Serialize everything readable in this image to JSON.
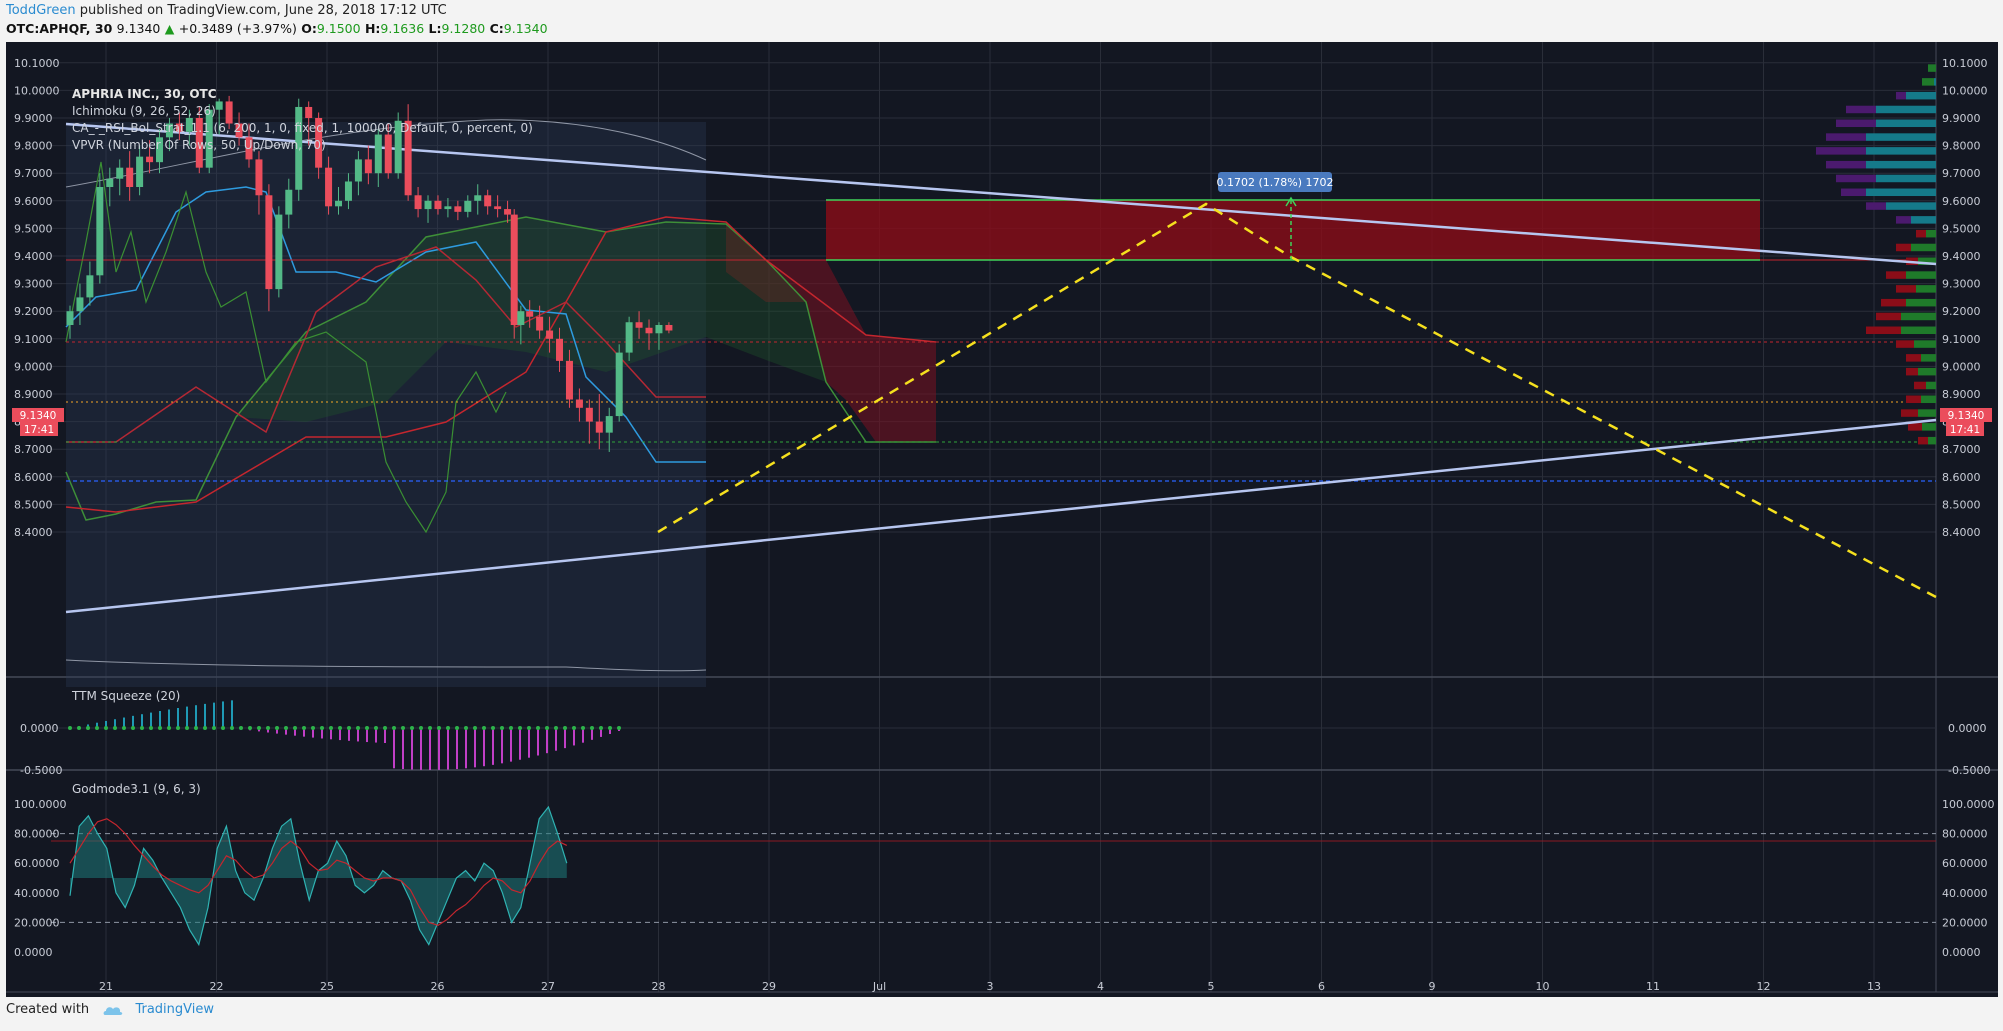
{
  "header": {
    "user": "ToddGreen",
    "published": "published on TradingView.com, June 28, 2018 17:12 UTC",
    "symbol": "OTC:APHQF, 30",
    "last": "9.1340",
    "change": "+0.3489 (+3.97%)",
    "open_label": "O:",
    "open": "9.1500",
    "high_label": "H:",
    "high": "9.1636",
    "low_label": "L:",
    "low": "9.1280",
    "close_label": "C:",
    "close": "9.1340"
  },
  "legend": {
    "title": "APHRIA INC., 30, OTC",
    "ind1": "Ichimoku (9, 26, 52, 26)",
    "ind2": "CA_-_RSI_Bol_Strat_1.1 (6, 200, 1, 0, fixed, 1, 100000, Default, 0, percent, 0)",
    "ind3": "VPVR (Number Of Rows, 50, Up/Down, 70)"
  },
  "price_badge": {
    "price": "9.1340",
    "timer": "17:41"
  },
  "measure_label": "0.1702 (1.78%) 1702",
  "pane2_title": "TTM Squeeze (20)",
  "pane3_title": "Godmode3.1 (9, 6, 3)",
  "footer": {
    "created": "Created with",
    "brand": "TradingView"
  },
  "colors": {
    "bg": "#131722",
    "up": "#53b987",
    "down": "#eb4d5c",
    "trend": "#b7c6f0",
    "dash": "#f5e01e",
    "zone": "#8b0d18"
  },
  "chart_data": {
    "type": "candlestick",
    "title": "APHRIA INC., 30, OTC",
    "x_ticks": [
      "21",
      "22",
      "25",
      "26",
      "27",
      "28",
      "29",
      "Jul",
      "3",
      "4",
      "5",
      "6",
      "9",
      "10",
      "11",
      "12",
      "13"
    ],
    "y_ticks": [
      "8.4000",
      "8.5000",
      "8.6000",
      "8.7000",
      "8.8000",
      "8.9000",
      "9.0000",
      "9.1000",
      "9.2000",
      "9.3000",
      "9.4000",
      "9.5000",
      "9.6000",
      "9.7000",
      "9.8000",
      "9.9000",
      "10.0000",
      "10.1000"
    ],
    "ylim": [
      8.4,
      10.15
    ],
    "candles": [
      [
        0.0,
        9.15,
        9.22,
        9.1,
        9.2
      ],
      [
        0.09,
        9.2,
        9.3,
        9.15,
        9.25
      ],
      [
        0.18,
        9.25,
        9.38,
        9.22,
        9.33
      ],
      [
        0.27,
        9.33,
        9.7,
        9.3,
        9.65
      ],
      [
        0.36,
        9.65,
        9.72,
        9.58,
        9.68
      ],
      [
        0.45,
        9.68,
        9.75,
        9.62,
        9.72
      ],
      [
        0.54,
        9.72,
        9.78,
        9.6,
        9.65
      ],
      [
        0.63,
        9.65,
        9.8,
        9.62,
        9.76
      ],
      [
        0.72,
        9.76,
        9.82,
        9.7,
        9.74
      ],
      [
        0.81,
        9.74,
        9.86,
        9.7,
        9.83
      ],
      [
        0.9,
        9.83,
        9.9,
        9.78,
        9.88
      ],
      [
        0.99,
        9.88,
        9.92,
        9.82,
        9.85
      ],
      [
        1.08,
        9.85,
        9.93,
        9.8,
        9.9
      ],
      [
        1.17,
        9.9,
        9.94,
        9.7,
        9.72
      ],
      [
        1.26,
        9.72,
        9.95,
        9.7,
        9.93
      ],
      [
        1.35,
        9.93,
        9.97,
        9.84,
        9.96
      ],
      [
        1.44,
        9.96,
        9.98,
        9.86,
        9.88
      ],
      [
        1.53,
        9.88,
        9.92,
        9.8,
        9.83
      ],
      [
        1.62,
        9.83,
        9.88,
        9.72,
        9.75
      ],
      [
        1.71,
        9.75,
        9.78,
        9.55,
        9.62
      ],
      [
        1.8,
        9.62,
        9.66,
        9.2,
        9.28
      ],
      [
        1.89,
        9.28,
        9.58,
        9.25,
        9.55
      ],
      [
        1.98,
        9.55,
        9.68,
        9.5,
        9.64
      ],
      [
        2.07,
        9.64,
        9.97,
        9.6,
        9.94
      ],
      [
        2.16,
        9.94,
        9.96,
        9.8,
        9.9
      ],
      [
        2.25,
        9.9,
        9.92,
        9.68,
        9.72
      ],
      [
        2.34,
        9.72,
        9.76,
        9.55,
        9.58
      ],
      [
        2.43,
        9.58,
        9.65,
        9.55,
        9.6
      ],
      [
        2.52,
        9.6,
        9.7,
        9.57,
        9.67
      ],
      [
        2.61,
        9.67,
        9.78,
        9.62,
        9.75
      ],
      [
        2.7,
        9.75,
        9.8,
        9.66,
        9.7
      ],
      [
        2.79,
        9.7,
        9.86,
        9.65,
        9.84
      ],
      [
        2.88,
        9.84,
        9.88,
        9.68,
        9.7
      ],
      [
        2.97,
        9.7,
        9.92,
        9.68,
        9.89
      ],
      [
        3.06,
        9.89,
        9.95,
        9.6,
        9.62
      ],
      [
        3.15,
        9.62,
        9.65,
        9.54,
        9.57
      ],
      [
        3.24,
        9.57,
        9.62,
        9.52,
        9.6
      ],
      [
        3.33,
        9.6,
        9.62,
        9.55,
        9.57
      ],
      [
        3.42,
        9.57,
        9.61,
        9.54,
        9.58
      ],
      [
        3.51,
        9.58,
        9.6,
        9.53,
        9.56
      ],
      [
        3.6,
        9.56,
        9.62,
        9.54,
        9.6
      ],
      [
        3.69,
        9.6,
        9.66,
        9.55,
        9.62
      ],
      [
        3.78,
        9.62,
        9.64,
        9.55,
        9.58
      ],
      [
        3.87,
        9.58,
        9.62,
        9.54,
        9.57
      ],
      [
        3.96,
        9.57,
        9.6,
        9.52,
        9.55
      ],
      [
        4.02,
        9.55,
        9.57,
        9.1,
        9.15
      ],
      [
        4.08,
        9.15,
        9.22,
        9.08,
        9.2
      ],
      [
        4.16,
        9.2,
        9.24,
        9.14,
        9.18
      ],
      [
        4.25,
        9.18,
        9.22,
        9.1,
        9.13
      ],
      [
        4.34,
        9.13,
        9.18,
        9.05,
        9.1
      ],
      [
        4.43,
        9.1,
        9.14,
        8.98,
        9.02
      ],
      [
        4.52,
        9.02,
        9.06,
        8.85,
        8.88
      ],
      [
        4.61,
        8.88,
        8.92,
        8.8,
        8.85
      ],
      [
        4.7,
        8.85,
        8.88,
        8.72,
        8.8
      ],
      [
        4.79,
        8.8,
        8.9,
        8.7,
        8.76
      ],
      [
        4.88,
        8.76,
        8.85,
        8.69,
        8.82
      ],
      [
        4.97,
        8.82,
        9.08,
        8.8,
        9.05
      ],
      [
        5.06,
        9.05,
        9.18,
        9.02,
        9.16
      ],
      [
        5.15,
        9.16,
        9.2,
        9.1,
        9.14
      ],
      [
        5.24,
        9.14,
        9.17,
        9.06,
        9.12
      ],
      [
        5.33,
        9.12,
        9.16,
        9.06,
        9.15
      ],
      [
        5.42,
        9.15,
        9.16,
        9.12,
        9.13
      ]
    ],
    "pane2": {
      "title": "TTM Squeeze (20)",
      "y_ticks": [
        "0.0000",
        "-0.5000"
      ]
    },
    "pane3": {
      "title": "Godmode3.1 (9, 6, 3)",
      "y_ticks": [
        "0.0000",
        "20.0000",
        "40.0000",
        "60.0000",
        "80.0000",
        "100.0000"
      ]
    },
    "grid": true
  }
}
